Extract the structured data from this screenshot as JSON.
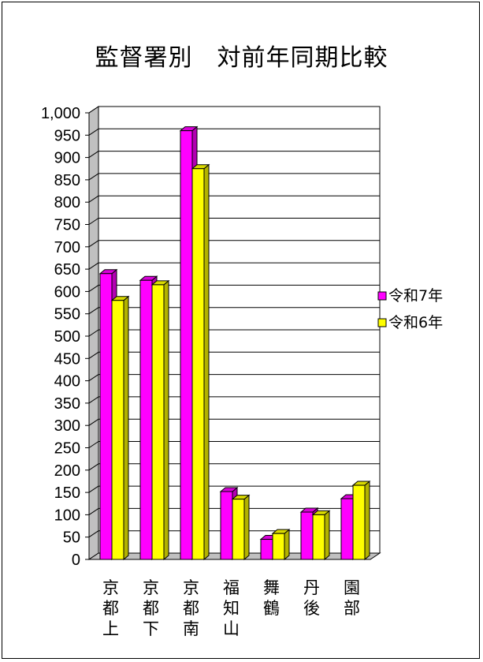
{
  "chart_data": {
    "type": "bar",
    "title": "監督署別　対前年同期比較",
    "categories": [
      "京都上",
      "京都下",
      "京都南",
      "福知山",
      "舞鶴",
      "丹後",
      "園部"
    ],
    "series": [
      {
        "name": "令和7年",
        "values": [
          640,
          625,
          960,
          152,
          45,
          106,
          136
        ],
        "color": "#ff00ff"
      },
      {
        "name": "令和6年",
        "values": [
          580,
          615,
          875,
          135,
          58,
          100,
          166
        ],
        "color": "#ffff00"
      }
    ],
    "ylim": [
      0,
      1000
    ],
    "ytick_step": 50,
    "ytick_labels": [
      "0",
      "50",
      "100",
      "150",
      "200",
      "250",
      "300",
      "350",
      "400",
      "450",
      "500",
      "550",
      "600",
      "650",
      "700",
      "750",
      "800",
      "850",
      "900",
      "950",
      "1,000"
    ],
    "grid": true,
    "legend_position": "right",
    "xlabel": "",
    "ylabel": ""
  }
}
